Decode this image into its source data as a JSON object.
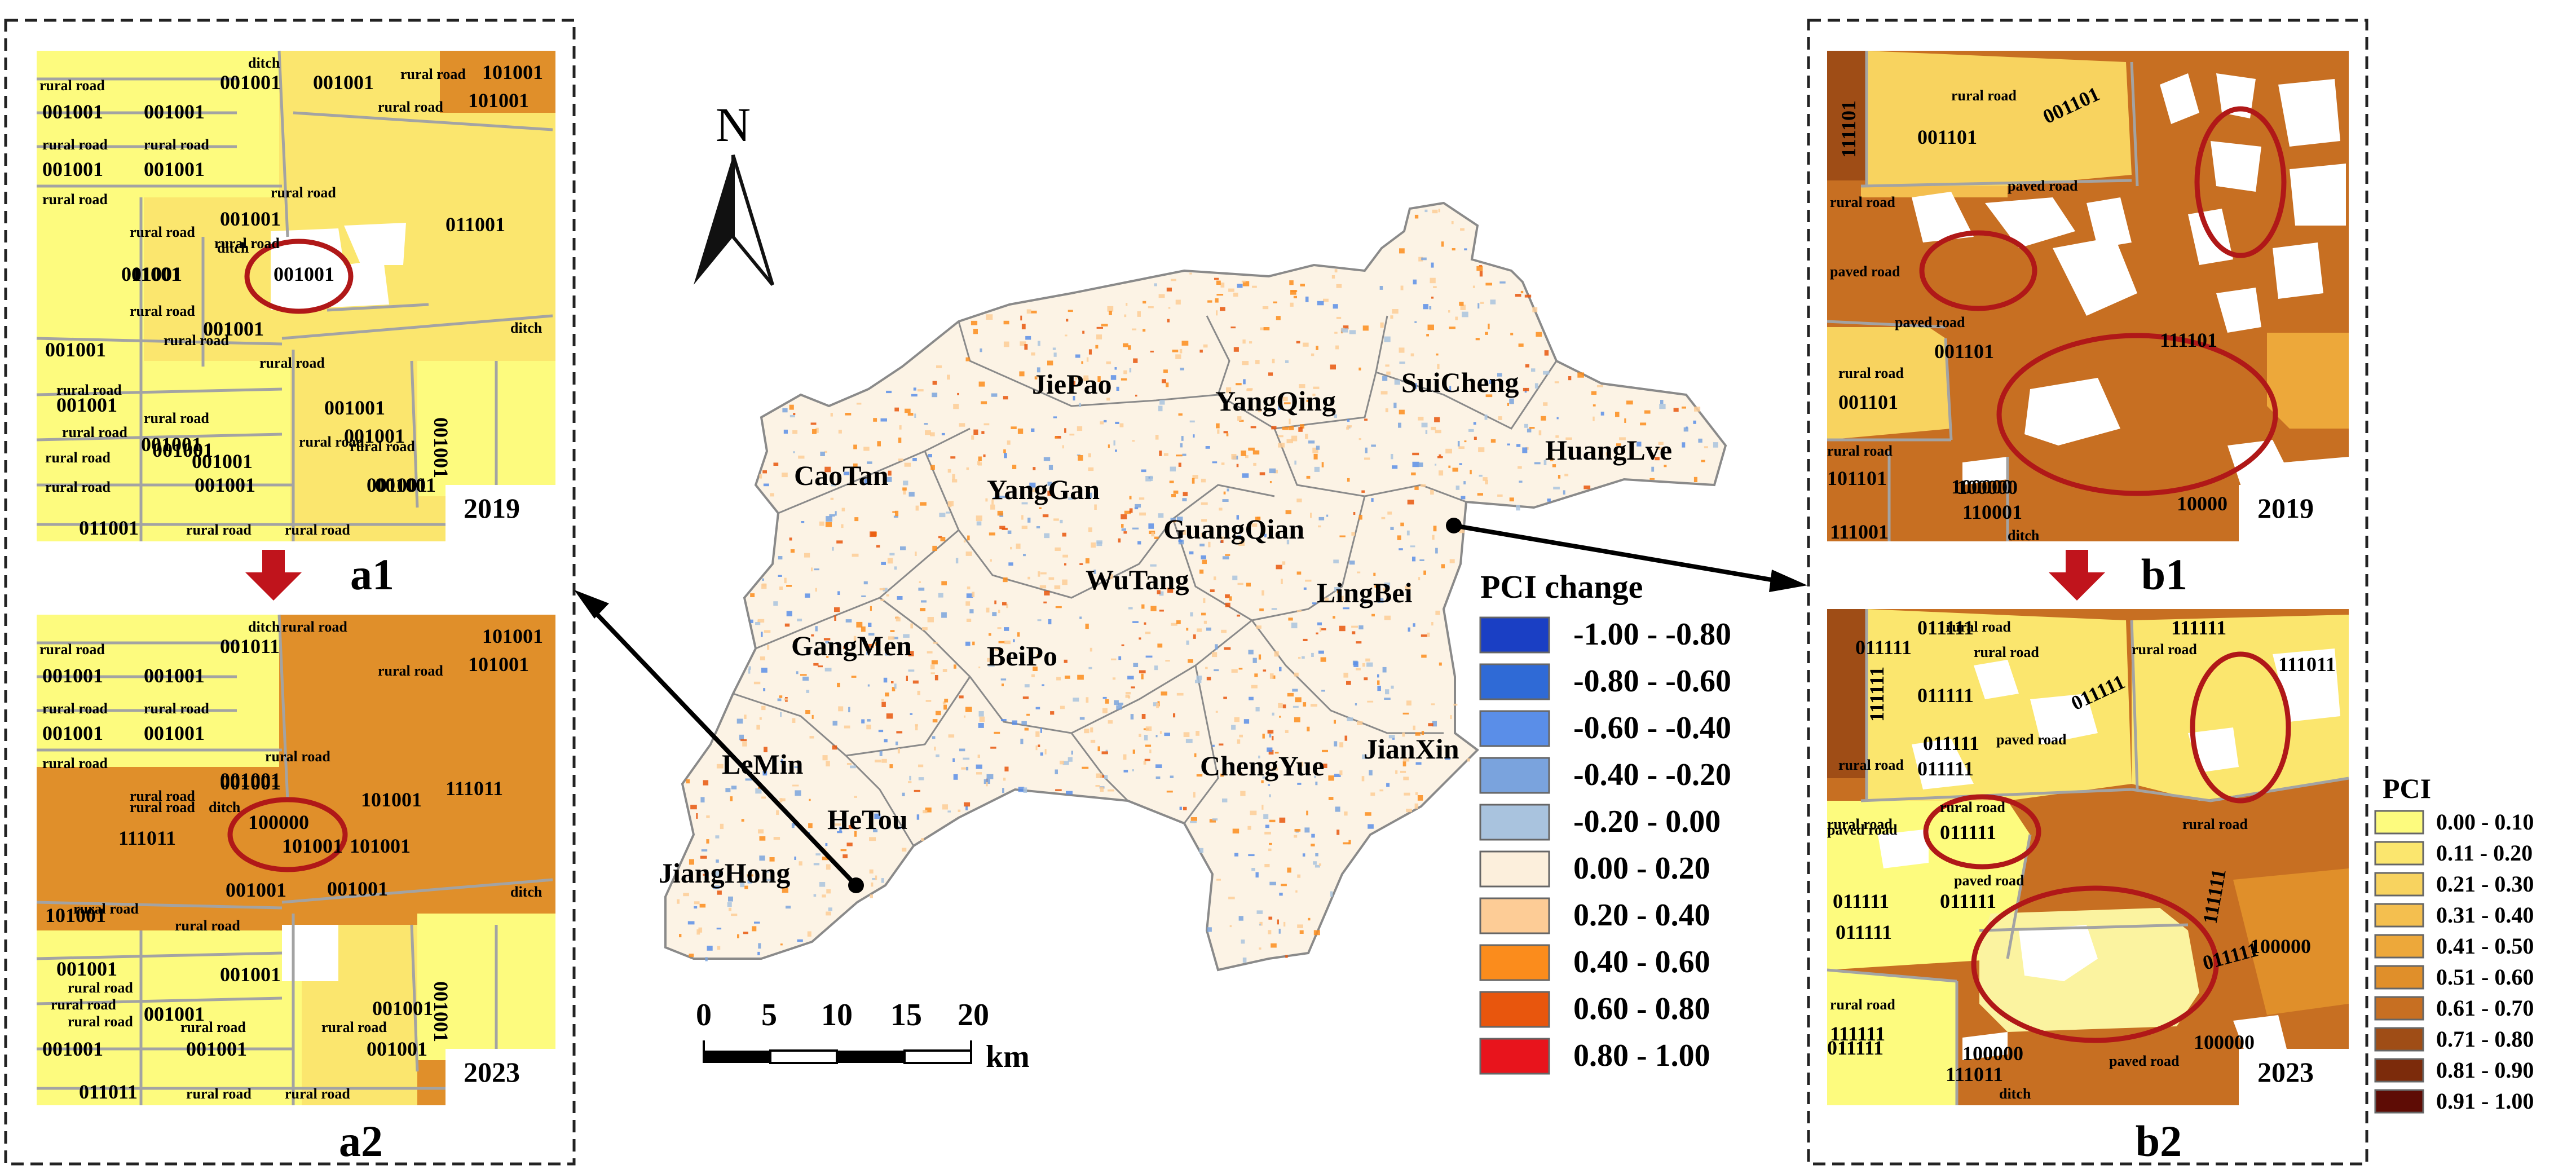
{
  "north_label": "N",
  "scalebar": {
    "ticks": [
      "0",
      "5",
      "10",
      "15",
      "20"
    ],
    "unit": "km"
  },
  "regions": [
    {
      "name": "JiePao"
    },
    {
      "name": "YangQing"
    },
    {
      "name": "SuiCheng"
    },
    {
      "name": "HuangLve"
    },
    {
      "name": "CaoTan"
    },
    {
      "name": "YangGan"
    },
    {
      "name": "GuangQian"
    },
    {
      "name": "WuTang"
    },
    {
      "name": "LingBei"
    },
    {
      "name": "GangMen"
    },
    {
      "name": "BeiPo"
    },
    {
      "name": "LeMin"
    },
    {
      "name": "ChengYue"
    },
    {
      "name": "JianXin"
    },
    {
      "name": "HeTou"
    },
    {
      "name": "JiangHong"
    }
  ],
  "pci_change_legend": {
    "title": "PCI change",
    "items": [
      {
        "label": "-1.00 - -0.80",
        "color": "#1a3fc4"
      },
      {
        "label": "-0.80 - -0.60",
        "color": "#2f6ad6"
      },
      {
        "label": "-0.60 - -0.40",
        "color": "#5a8ee8"
      },
      {
        "label": "-0.40 - -0.20",
        "color": "#7aa3dd"
      },
      {
        "label": "-0.20 -  0.00",
        "color": "#a9c3de"
      },
      {
        "label": "0.00 -  0.20",
        "color": "#fcefdc"
      },
      {
        "label": "0.20 -  0.40",
        "color": "#fdcc96"
      },
      {
        "label": "0.40 -  0.60",
        "color": "#fb8c1c"
      },
      {
        "label": "0.60 -  0.80",
        "color": "#e8560d"
      },
      {
        "label": "0.80 -  1.00",
        "color": "#e8141c"
      }
    ]
  },
  "pci_legend": {
    "title": "PCI",
    "items": [
      {
        "label": "0.00 - 0.10",
        "color": "#fdfb7e"
      },
      {
        "label": "0.11 - 0.20",
        "color": "#fbe66e"
      },
      {
        "label": "0.21 - 0.30",
        "color": "#f8d35f"
      },
      {
        "label": "0.31 - 0.40",
        "color": "#f4bf4f"
      },
      {
        "label": "0.41 - 0.50",
        "color": "#eda83a"
      },
      {
        "label": "0.51 - 0.60",
        "color": "#e08f2a"
      },
      {
        "label": "0.61 - 0.70",
        "color": "#c76f22"
      },
      {
        "label": "0.71 - 0.80",
        "color": "#9f4d16"
      },
      {
        "label": "0.81 - 0.90",
        "color": "#7c2b0b"
      },
      {
        "label": "0.91 - 1.00",
        "color": "#5e0c05"
      }
    ]
  },
  "panels": {
    "a1": {
      "label": "a1",
      "year": "2019"
    },
    "a2": {
      "label": "a2",
      "year": "2023"
    },
    "b1": {
      "label": "b1",
      "year": "2019"
    },
    "b2": {
      "label": "b2",
      "year": "2023"
    }
  },
  "a1_labels": [
    "rural road",
    "001001",
    "001001",
    "ditch",
    "rural road",
    "rural road",
    "101001",
    "101001",
    "001001",
    "001001",
    "rural road",
    "001001",
    "001001",
    "rural road",
    "rural road",
    "001001",
    "rural road",
    "011001",
    "rural road",
    "001001",
    "001001",
    "011001",
    "rural road",
    "001001",
    "rural road",
    "ditch",
    "001001",
    "rural road",
    "001001",
    "rural road",
    "001001",
    "001001",
    "rural road",
    "rural road",
    "001001",
    "001001",
    "rural road",
    "rural road",
    "001001",
    "rural road",
    "rural road",
    "001001",
    "001001",
    "rural road",
    "001001",
    "001001",
    "011001",
    "rural road",
    "rural road",
    "ditch",
    "001001"
  ],
  "a2_labels": [
    "rural road",
    "001011",
    "ditch",
    "rural road",
    "rural road",
    "101001",
    "101001",
    "001001",
    "001001",
    "rural road",
    "001001",
    "001001",
    "rural road",
    "rural road",
    "001001",
    "rural road",
    "rural road",
    "001001",
    "rural road",
    "ditch",
    "100000",
    "101001",
    "101001",
    "111011",
    "111011",
    "101001",
    "001001",
    "rural road",
    "101001",
    "001001",
    "rural road",
    "ditch",
    "001001",
    "rural road",
    "001001",
    "rural road",
    "001001",
    "001001",
    "rural road",
    "rural road",
    "001001",
    "001001",
    "001001",
    "rural road",
    "011011",
    "rural road",
    "rural road",
    "001001",
    "001001"
  ],
  "b1_labels": [
    "111101",
    "rural road",
    "001101",
    "001101",
    "paved road",
    "rural road",
    "paved road",
    "paved road",
    "001101",
    "111101",
    "rural road",
    "001101",
    "100000",
    "rural road",
    "101101",
    "100000",
    "110001",
    "ditch",
    "111001",
    "10000"
  ],
  "b2_labels": [
    "011111",
    "rural road",
    "011111",
    "111111",
    "111111",
    "rural road",
    "rural road",
    "011111",
    "111011",
    "rural road",
    "011111",
    "paved road",
    "011111",
    "011111",
    "rural road",
    "paved road",
    "rural road",
    "011111",
    "paved road",
    "011111",
    "011111",
    "011111",
    "rural road",
    "111111",
    "011111",
    "100000",
    "011111",
    "rural road",
    "111111",
    "100000",
    "100000",
    "paved road",
    "111011",
    "ditch"
  ]
}
